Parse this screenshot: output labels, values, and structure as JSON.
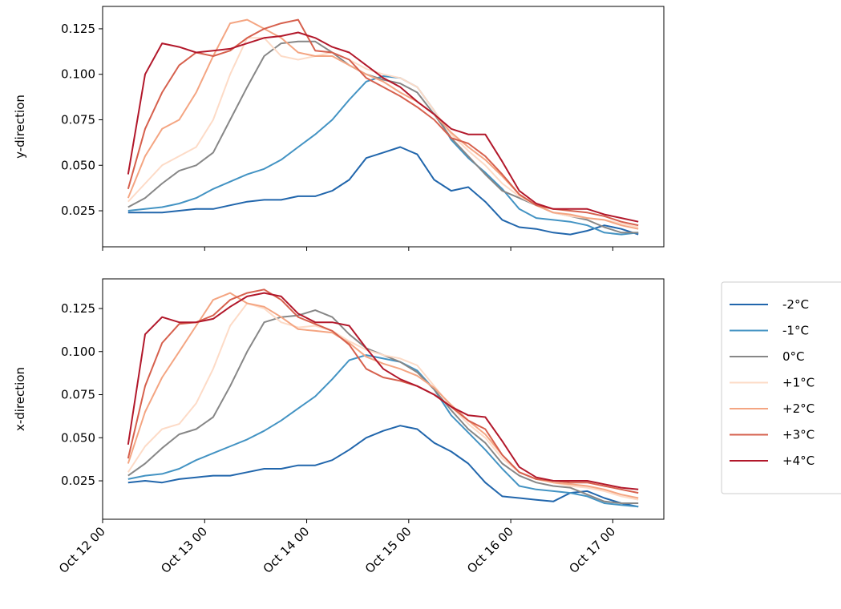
{
  "chart_data": [
    {
      "type": "line",
      "ylabel": "y-direction",
      "x": [
        "Oct 12 06",
        "Oct 12 10",
        "Oct 12 14",
        "Oct 12 18",
        "Oct 12 22",
        "Oct 13 02",
        "Oct 13 06",
        "Oct 13 10",
        "Oct 13 14",
        "Oct 13 18",
        "Oct 13 22",
        "Oct 14 02",
        "Oct 14 06",
        "Oct 14 10",
        "Oct 14 14",
        "Oct 14 18",
        "Oct 14 22",
        "Oct 15 02",
        "Oct 15 06",
        "Oct 15 10",
        "Oct 15 14",
        "Oct 15 18",
        "Oct 15 22",
        "Oct 16 02",
        "Oct 16 06",
        "Oct 16 10",
        "Oct 16 14",
        "Oct 16 18",
        "Oct 16 22",
        "Oct 17 02",
        "Oct 17 06"
      ],
      "xlim": [
        "Oct 12 00",
        "Oct 17 12"
      ],
      "ylim": [
        0.0052,
        0.1373
      ],
      "yticks": [
        0.025,
        {
          "value": 0.05,
          "label": "0.050"
        },
        0.075,
        {
          "value": 0.1,
          "label": "0.100"
        },
        0.125
      ],
      "series": [
        {
          "name": "-2°C",
          "color": "#2166ac",
          "values": [
            0.024,
            0.024,
            0.024,
            0.025,
            0.026,
            0.026,
            0.028,
            0.03,
            0.031,
            0.031,
            0.033,
            0.033,
            0.036,
            0.042,
            0.054,
            0.057,
            0.06,
            0.056,
            0.042,
            0.036,
            0.038,
            0.03,
            0.02,
            0.016,
            0.015,
            0.013,
            0.012,
            0.014,
            0.017,
            0.015,
            0.012
          ]
        },
        {
          "name": "-1°C",
          "color": "#4393c3",
          "values": [
            0.025,
            0.026,
            0.027,
            0.029,
            0.032,
            0.037,
            0.041,
            0.045,
            0.048,
            0.053,
            0.06,
            0.067,
            0.075,
            0.086,
            0.096,
            0.099,
            0.098,
            0.093,
            0.08,
            0.064,
            0.054,
            0.046,
            0.037,
            0.026,
            0.021,
            0.02,
            0.019,
            0.017,
            0.013,
            0.012,
            0.013
          ]
        },
        {
          "name": "0°C",
          "color": "#878787",
          "values": [
            0.027,
            0.032,
            0.04,
            0.047,
            0.05,
            0.057,
            0.075,
            0.093,
            0.11,
            0.117,
            0.118,
            0.118,
            0.112,
            0.105,
            0.1,
            0.097,
            0.095,
            0.09,
            0.078,
            0.065,
            0.055,
            0.045,
            0.036,
            0.032,
            0.028,
            0.024,
            0.022,
            0.02,
            0.016,
            0.013,
            0.013
          ]
        },
        {
          "name": "+1°C",
          "color": "#fddbc7",
          "values": [
            0.03,
            0.04,
            0.05,
            0.055,
            0.06,
            0.075,
            0.1,
            0.12,
            0.12,
            0.11,
            0.108,
            0.11,
            0.112,
            0.108,
            0.103,
            0.1,
            0.098,
            0.093,
            0.08,
            0.067,
            0.058,
            0.05,
            0.04,
            0.033,
            0.028,
            0.024,
            0.022,
            0.021,
            0.02,
            0.018,
            0.016
          ]
        },
        {
          "name": "+2°C",
          "color": "#f4a582",
          "values": [
            0.032,
            0.055,
            0.07,
            0.075,
            0.09,
            0.11,
            0.128,
            0.13,
            0.125,
            0.12,
            0.112,
            0.11,
            0.11,
            0.105,
            0.1,
            0.096,
            0.09,
            0.085,
            0.078,
            0.068,
            0.06,
            0.053,
            0.044,
            0.034,
            0.028,
            0.024,
            0.023,
            0.021,
            0.02,
            0.017,
            0.015
          ]
        },
        {
          "name": "+3°C",
          "color": "#d6604d",
          "values": [
            0.037,
            0.07,
            0.09,
            0.105,
            0.112,
            0.11,
            0.113,
            0.12,
            0.125,
            0.128,
            0.13,
            0.113,
            0.112,
            0.108,
            0.098,
            0.093,
            0.088,
            0.082,
            0.075,
            0.065,
            0.062,
            0.055,
            0.045,
            0.034,
            0.028,
            0.026,
            0.025,
            0.024,
            0.022,
            0.019,
            0.017
          ]
        },
        {
          "name": "+4°C",
          "color": "#b2182b",
          "values": [
            0.045,
            0.1,
            0.117,
            0.115,
            0.112,
            0.113,
            0.114,
            0.117,
            0.12,
            0.121,
            0.123,
            0.12,
            0.115,
            0.112,
            0.105,
            0.098,
            0.093,
            0.085,
            0.078,
            0.07,
            0.067,
            0.067,
            0.052,
            0.036,
            0.029,
            0.026,
            0.026,
            0.026,
            0.023,
            0.021,
            0.019
          ]
        }
      ]
    },
    {
      "type": "line",
      "ylabel": "x-direction",
      "x": [
        "Oct 12 06",
        "Oct 12 10",
        "Oct 12 14",
        "Oct 12 18",
        "Oct 12 22",
        "Oct 13 02",
        "Oct 13 06",
        "Oct 13 10",
        "Oct 13 14",
        "Oct 13 18",
        "Oct 13 22",
        "Oct 14 02",
        "Oct 14 06",
        "Oct 14 10",
        "Oct 14 14",
        "Oct 14 18",
        "Oct 14 22",
        "Oct 15 02",
        "Oct 15 06",
        "Oct 15 10",
        "Oct 15 14",
        "Oct 15 18",
        "Oct 15 22",
        "Oct 16 02",
        "Oct 16 06",
        "Oct 16 10",
        "Oct 16 14",
        "Oct 16 18",
        "Oct 16 22",
        "Oct 17 02",
        "Oct 17 06"
      ],
      "xlim": [
        "Oct 12 00",
        "Oct 17 12"
      ],
      "xticks": [
        "Oct 12 00",
        "Oct 13 00",
        "Oct 14 00",
        "Oct 15 00",
        "Oct 16 00",
        "Oct 17 00"
      ],
      "ylim": [
        0.0027,
        0.1422
      ],
      "yticks": [
        0.025,
        {
          "value": 0.05,
          "label": "0.050"
        },
        0.075,
        {
          "value": 0.1,
          "label": "0.100"
        },
        0.125
      ],
      "legend": "outside right",
      "series": [
        {
          "name": "-2°C",
          "color": "#2166ac",
          "values": [
            0.024,
            0.025,
            0.024,
            0.026,
            0.027,
            0.028,
            0.028,
            0.03,
            0.032,
            0.032,
            0.034,
            0.034,
            0.037,
            0.043,
            0.05,
            0.054,
            0.057,
            0.055,
            0.047,
            0.042,
            0.035,
            0.024,
            0.016,
            0.015,
            0.014,
            0.013,
            0.018,
            0.019,
            0.015,
            0.012,
            0.01
          ]
        },
        {
          "name": "-1°C",
          "color": "#4393c3",
          "values": [
            0.026,
            0.028,
            0.029,
            0.032,
            0.037,
            0.041,
            0.045,
            0.049,
            0.054,
            0.06,
            0.067,
            0.074,
            0.084,
            0.095,
            0.098,
            0.096,
            0.094,
            0.089,
            0.078,
            0.063,
            0.053,
            0.043,
            0.032,
            0.022,
            0.02,
            0.019,
            0.018,
            0.016,
            0.012,
            0.011,
            0.01
          ]
        },
        {
          "name": "0°C",
          "color": "#878787",
          "values": [
            0.028,
            0.035,
            0.044,
            0.052,
            0.055,
            0.062,
            0.08,
            0.1,
            0.117,
            0.12,
            0.121,
            0.124,
            0.12,
            0.11,
            0.102,
            0.098,
            0.094,
            0.088,
            0.078,
            0.066,
            0.055,
            0.047,
            0.035,
            0.028,
            0.024,
            0.022,
            0.021,
            0.017,
            0.013,
            0.012,
            0.012
          ]
        },
        {
          "name": "+1°C",
          "color": "#fddbc7",
          "values": [
            0.03,
            0.045,
            0.055,
            0.058,
            0.07,
            0.09,
            0.115,
            0.128,
            0.125,
            0.117,
            0.114,
            0.115,
            0.112,
            0.106,
            0.101,
            0.098,
            0.096,
            0.092,
            0.08,
            0.068,
            0.058,
            0.05,
            0.038,
            0.03,
            0.026,
            0.024,
            0.022,
            0.021,
            0.019,
            0.016,
            0.014
          ]
        },
        {
          "name": "+2°C",
          "color": "#f4a582",
          "values": [
            0.035,
            0.065,
            0.085,
            0.1,
            0.115,
            0.13,
            0.134,
            0.128,
            0.126,
            0.12,
            0.113,
            0.112,
            0.111,
            0.105,
            0.097,
            0.093,
            0.09,
            0.086,
            0.079,
            0.069,
            0.06,
            0.052,
            0.04,
            0.03,
            0.026,
            0.024,
            0.023,
            0.022,
            0.02,
            0.017,
            0.015
          ]
        },
        {
          "name": "+3°C",
          "color": "#d6604d",
          "values": [
            0.038,
            0.08,
            0.105,
            0.116,
            0.117,
            0.121,
            0.13,
            0.134,
            0.136,
            0.13,
            0.12,
            0.116,
            0.112,
            0.104,
            0.09,
            0.085,
            0.083,
            0.08,
            0.075,
            0.068,
            0.06,
            0.055,
            0.04,
            0.03,
            0.026,
            0.025,
            0.024,
            0.024,
            0.022,
            0.02,
            0.018
          ]
        },
        {
          "name": "+4°C",
          "color": "#b2182b",
          "values": [
            0.046,
            0.11,
            0.12,
            0.117,
            0.117,
            0.119,
            0.126,
            0.132,
            0.134,
            0.132,
            0.122,
            0.117,
            0.117,
            0.115,
            0.102,
            0.09,
            0.084,
            0.08,
            0.075,
            0.068,
            0.063,
            0.062,
            0.048,
            0.033,
            0.027,
            0.025,
            0.025,
            0.025,
            0.023,
            0.021,
            0.02
          ]
        }
      ]
    }
  ]
}
